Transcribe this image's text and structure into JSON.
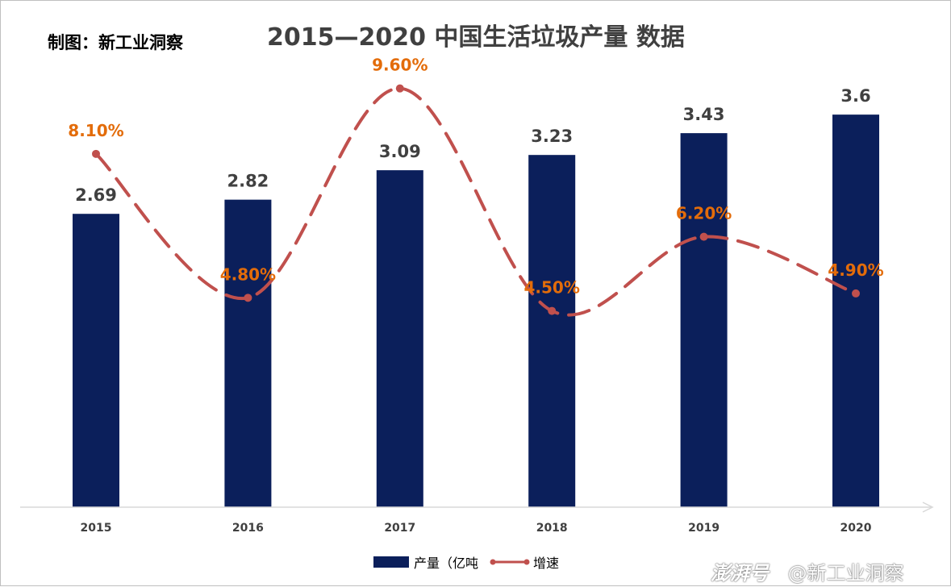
{
  "credit": "制图：新工业洞察",
  "watermark": {
    "brand": "澎湃号",
    "account": "@新工业洞察"
  },
  "colors": {
    "bar": "#0b1f5b",
    "line": "#c0504d",
    "growth_label": "#e36c0a",
    "value_label": "#404040",
    "axis": "#d9d9d9"
  },
  "chart_data": {
    "type": "bar",
    "title": "2015—2020 中国生活垃圾产量 数据",
    "categories": [
      "2015",
      "2016",
      "2017",
      "2018",
      "2019",
      "2020"
    ],
    "series": [
      {
        "name": "产量（亿吨",
        "type": "bar",
        "axis": "left",
        "values": [
          2.69,
          2.82,
          3.09,
          3.23,
          3.43,
          3.6
        ],
        "labels": [
          "2.69",
          "2.82",
          "3.09",
          "3.23",
          "3.43",
          "3.6"
        ]
      },
      {
        "name": "增速",
        "type": "line",
        "axis": "right",
        "style": "dashed smooth with markers",
        "values": [
          8.1,
          4.8,
          9.6,
          4.5,
          6.2,
          4.9
        ],
        "labels": [
          "8.10%",
          "4.80%",
          "9.60%",
          "4.50%",
          "6.20%",
          "4.90%"
        ]
      }
    ],
    "ylim": [
      0,
      4.2
    ],
    "ylim_right": [
      0,
      10.5
    ],
    "grid": false,
    "legend": "bottom"
  }
}
